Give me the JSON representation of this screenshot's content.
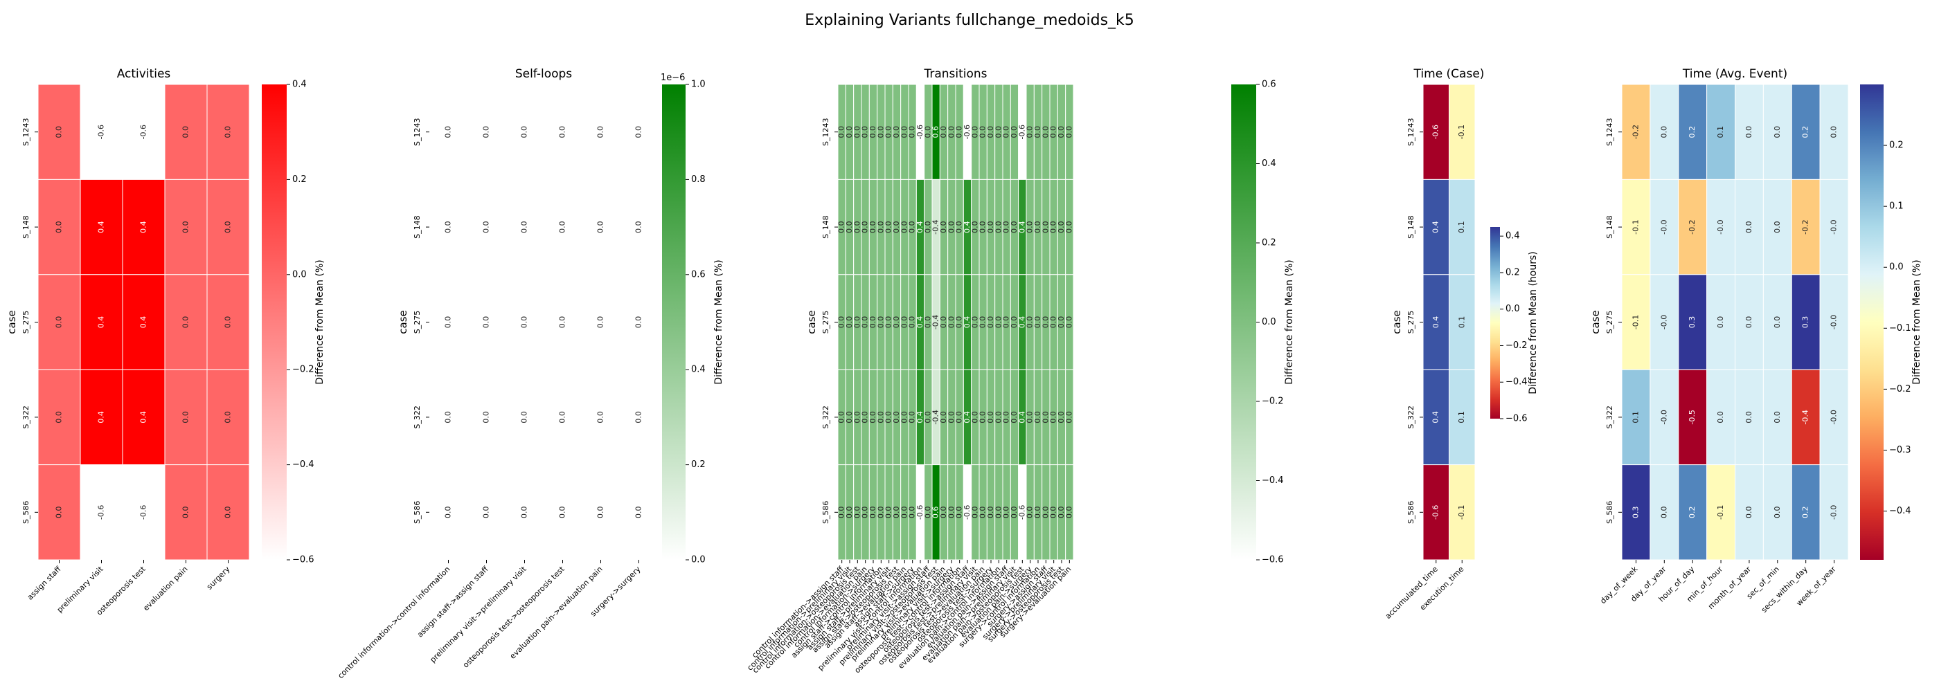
{
  "title": "Explaining Variants fullchange_medoids_k5",
  "row_axis_label": "case",
  "cases": [
    "S_1243",
    "S_148",
    "S_275",
    "S_322",
    "S_586"
  ],
  "colors": {
    "red": "#ff0000",
    "green": "#008000",
    "white": "#ffffff"
  },
  "chart_data": [
    {
      "type": "heatmap",
      "title": "Activities",
      "columns": [
        "assign staff",
        "preliminary visit",
        "osteoporosis test",
        "evaluation pain",
        "surgery"
      ],
      "rows": [
        "S_1243",
        "S_148",
        "S_275",
        "S_322",
        "S_586"
      ],
      "values": [
        [
          0.0,
          -0.6,
          -0.6,
          0.0,
          0.0
        ],
        [
          0.0,
          0.4,
          0.4,
          0.0,
          0.0
        ],
        [
          0.0,
          0.4,
          0.4,
          0.0,
          0.0
        ],
        [
          0.0,
          0.4,
          0.4,
          0.0,
          0.0
        ],
        [
          0.0,
          -0.6,
          -0.6,
          0.0,
          0.0
        ]
      ],
      "colormap": "white-red",
      "vmin": -0.6,
      "vmax": 0.4,
      "colorbar_ticks": [
        "−0.6",
        "−0.4",
        "−0.2",
        "0.0",
        "0.2",
        "0.4"
      ],
      "colorbar_label": "Difference from Mean (%)",
      "colorbar_offset": ""
    },
    {
      "type": "heatmap",
      "title": "Self-loops",
      "columns": [
        "control information->control information",
        "assign staff->assign staff",
        "preliminary visit->preliminary visit",
        "osteoporosis test->osteoporosis test",
        "evaluation pain->evaluation pain",
        "surgery->surgery"
      ],
      "rows": [
        "S_1243",
        "S_148",
        "S_275",
        "S_322",
        "S_586"
      ],
      "values": [
        [
          0.0,
          0.0,
          0.0,
          0.0,
          0.0,
          0.0
        ],
        [
          0.0,
          0.0,
          0.0,
          0.0,
          0.0,
          0.0
        ],
        [
          0.0,
          0.0,
          0.0,
          0.0,
          0.0,
          0.0
        ],
        [
          0.0,
          0.0,
          0.0,
          0.0,
          0.0,
          0.0
        ],
        [
          0.0,
          0.0,
          0.0,
          0.0,
          0.0,
          0.0
        ]
      ],
      "colormap": "white-green",
      "vmin": 0.0,
      "vmax": 1.0,
      "colorbar_ticks": [
        "0.0",
        "0.2",
        "0.4",
        "0.6",
        "0.8",
        "1.0"
      ],
      "colorbar_label": "Difference from Mean (%)",
      "colorbar_offset": "1e−6"
    },
    {
      "type": "heatmap",
      "title": "Transitions",
      "columns": [
        "control information->assign staff",
        "control information->preliminary visit",
        "control information->osteoporosis test",
        "control information->evaluation pain",
        "control information->surgery",
        "assign staff->control information",
        "assign staff->preliminary visit",
        "assign staff->osteoporosis test",
        "assign staff->evaluation pain",
        "assign staff->surgery",
        "preliminary visit->control information",
        "preliminary visit->assign staff",
        "preliminary visit->osteoporosis test",
        "preliminary visit->evaluation pain",
        "preliminary visit->surgery",
        "osteoporosis test->control information",
        "osteoporosis test->assign staff",
        "osteoporosis test->preliminary visit",
        "osteoporosis test->evaluation pain",
        "osteoporosis test->surgery",
        "evaluation pain->control information",
        "evaluation pain->assign staff",
        "evaluation pain->preliminary visit",
        "evaluation pain->osteoporosis test",
        "evaluation pain->surgery",
        "surgery->control information",
        "surgery->assign staff",
        "surgery->preliminary visit",
        "surgery->osteoporosis test",
        "surgery->evaluation pain"
      ],
      "rows": [
        "S_1243",
        "S_148",
        "S_275",
        "S_322",
        "S_586"
      ],
      "values": [
        [
          0.0,
          0.0,
          0.0,
          0.0,
          0.0,
          0.0,
          0.0,
          0.0,
          0.0,
          0.0,
          -0.6,
          0.0,
          0.6,
          0.0,
          0.0,
          0.0,
          -0.6,
          0.0,
          0.0,
          0.0,
          0.0,
          0.0,
          0.0,
          -0.6,
          0.0,
          0.0,
          0.0,
          0.0,
          0.0,
          0.0
        ],
        [
          0.0,
          0.0,
          0.0,
          0.0,
          0.0,
          0.0,
          0.0,
          0.0,
          0.0,
          0.0,
          0.4,
          0.0,
          -0.4,
          0.0,
          0.0,
          0.0,
          0.4,
          0.0,
          0.0,
          0.0,
          0.0,
          0.0,
          0.0,
          0.4,
          0.0,
          0.0,
          0.0,
          0.0,
          0.0,
          0.0
        ],
        [
          0.0,
          0.0,
          0.0,
          0.0,
          0.0,
          0.0,
          0.0,
          0.0,
          0.0,
          0.0,
          0.4,
          0.0,
          -0.4,
          0.0,
          0.0,
          0.0,
          0.4,
          0.0,
          0.0,
          0.0,
          0.0,
          0.0,
          0.0,
          0.4,
          0.0,
          0.0,
          0.0,
          0.0,
          0.0,
          0.0
        ],
        [
          0.0,
          0.0,
          0.0,
          0.0,
          0.0,
          0.0,
          0.0,
          0.0,
          0.0,
          0.0,
          0.4,
          0.0,
          -0.4,
          0.0,
          0.0,
          0.0,
          0.4,
          0.0,
          0.0,
          0.0,
          0.0,
          0.0,
          0.0,
          0.4,
          0.0,
          0.0,
          0.0,
          0.0,
          0.0,
          0.0
        ],
        [
          0.0,
          0.0,
          0.0,
          0.0,
          0.0,
          0.0,
          0.0,
          0.0,
          0.0,
          0.0,
          -0.6,
          0.0,
          0.6,
          0.0,
          0.0,
          0.0,
          -0.6,
          0.0,
          0.0,
          0.0,
          0.0,
          0.0,
          0.0,
          -0.6,
          0.0,
          0.0,
          0.0,
          0.0,
          0.0,
          0.0
        ]
      ],
      "colormap": "white-green",
      "vmin": -0.6,
      "vmax": 0.6,
      "colorbar_ticks": [
        "−0.6",
        "−0.4",
        "−0.2",
        "0.0",
        "0.2",
        "0.4",
        "0.6"
      ],
      "colorbar_label": "Difference from Mean (%)",
      "colorbar_offset": ""
    },
    {
      "type": "heatmap",
      "title": "Time (Case)",
      "columns": [
        "accumulated_time",
        "execution_time"
      ],
      "rows": [
        "S_1243",
        "S_148",
        "S_275",
        "S_322",
        "S_586"
      ],
      "values": [
        [
          -0.6,
          -0.1
        ],
        [
          0.4,
          0.1
        ],
        [
          0.4,
          0.1
        ],
        [
          0.4,
          0.1
        ],
        [
          -0.6,
          -0.1
        ]
      ],
      "colormap": "RdYlBu",
      "vmin": -0.6,
      "vmax": 0.45,
      "colorbar_ticks": [
        "−0.6",
        "−0.4",
        "−0.2",
        "0.0",
        "0.2",
        "0.4"
      ],
      "colorbar_label": "Difference from Mean (hours)",
      "colorbar_offset": ""
    },
    {
      "type": "heatmap",
      "title": "Time (Avg. Event)",
      "columns": [
        "day_of_week",
        "day_of_year",
        "hour_of_day",
        "min_of_hour",
        "month_of_year",
        "sec_of_min",
        "secs_within_day",
        "week_of_year"
      ],
      "rows": [
        "S_1243",
        "S_148",
        "S_275",
        "S_322",
        "S_586"
      ],
      "values": [
        [
          -0.2,
          0.0,
          0.2,
          0.1,
          0.0,
          0.0,
          0.2,
          0.0
        ],
        [
          -0.1,
          -0.0,
          -0.2,
          -0.0,
          0.0,
          0.0,
          -0.2,
          -0.0
        ],
        [
          -0.1,
          -0.0,
          0.3,
          0.0,
          0.0,
          0.0,
          0.3,
          -0.0
        ],
        [
          0.1,
          -0.0,
          -0.5,
          0.0,
          0.0,
          0.0,
          -0.4,
          -0.0
        ],
        [
          0.3,
          0.0,
          0.2,
          -0.1,
          0.0,
          0.0,
          0.2,
          -0.0
        ]
      ],
      "display": [
        [
          "-0.2",
          "0.0",
          "0.2",
          "0.1",
          "0.0",
          "0.0",
          "0.2",
          "0.0"
        ],
        [
          "-0.1",
          "-0.0",
          "-0.2",
          "-0.0",
          "0.0",
          "0.0",
          "-0.2",
          "-0.0"
        ],
        [
          "-0.1",
          "-0.0",
          "0.3",
          "0.0",
          "0.0",
          "0.0",
          "0.3",
          "-0.0"
        ],
        [
          "0.1",
          "-0.0",
          "-0.5",
          "0.0",
          "0.0",
          "0.0",
          "-0.4",
          "-0.0"
        ],
        [
          "0.3",
          "0.0",
          "0.2",
          "-0.1",
          "0.0",
          "0.0",
          "0.2",
          "-0.0"
        ]
      ],
      "colormap": "RdYlBu",
      "vmin": -0.48,
      "vmax": 0.3,
      "colorbar_ticks": [
        "−0.4",
        "−0.3",
        "−0.2",
        "−0.1",
        "0.0",
        "0.1",
        "0.2"
      ],
      "colorbar_label": "Difference from Mean (%)",
      "colorbar_offset": ""
    }
  ]
}
